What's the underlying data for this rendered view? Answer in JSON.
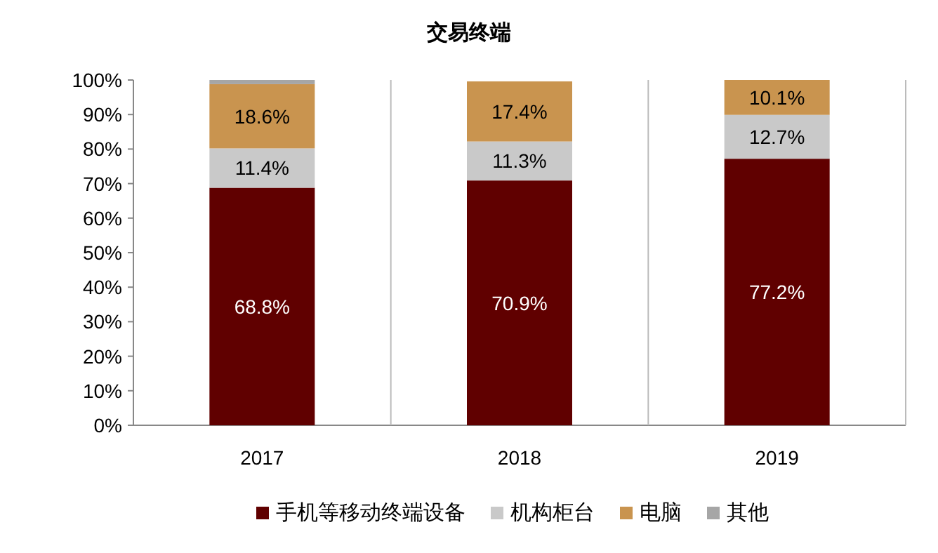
{
  "chart_data": {
    "type": "bar",
    "title": "交易终端",
    "stacked": true,
    "categories": [
      "2017",
      "2018",
      "2019"
    ],
    "series": [
      {
        "name": "手机等移动终端设备",
        "color": "#600000",
        "values": [
          68.8,
          70.9,
          77.2
        ],
        "value_labels": [
          "68.8%",
          "70.9%",
          "77.2%"
        ]
      },
      {
        "name": "机构柜台",
        "color": "#c9c9c9",
        "values": [
          11.4,
          11.3,
          12.7
        ],
        "value_labels": [
          "11.4%",
          "11.3%",
          "12.7%"
        ]
      },
      {
        "name": "电脑",
        "color": "#c9944f",
        "values": [
          18.6,
          17.4,
          10.1
        ],
        "value_labels": [
          "18.6%",
          "17.4%",
          "10.1%"
        ]
      },
      {
        "name": "其他",
        "color": "#a6a6a6",
        "values": [
          1.2,
          null,
          0
        ]
      }
    ],
    "ylim": [
      0,
      100
    ],
    "yticks": [
      {
        "value": 0,
        "label": "0%"
      },
      {
        "value": 10,
        "label": "10%"
      },
      {
        "value": 20,
        "label": "20%"
      },
      {
        "value": 30,
        "label": "30%"
      },
      {
        "value": 40,
        "label": "40%"
      },
      {
        "value": 50,
        "label": "50%"
      },
      {
        "value": 60,
        "label": "60%"
      },
      {
        "value": 70,
        "label": "70%"
      },
      {
        "value": 80,
        "label": "80%"
      },
      {
        "value": 90,
        "label": "90%"
      },
      {
        "value": 100,
        "label": "100%"
      }
    ],
    "grid": "x",
    "legend": "bottom"
  }
}
